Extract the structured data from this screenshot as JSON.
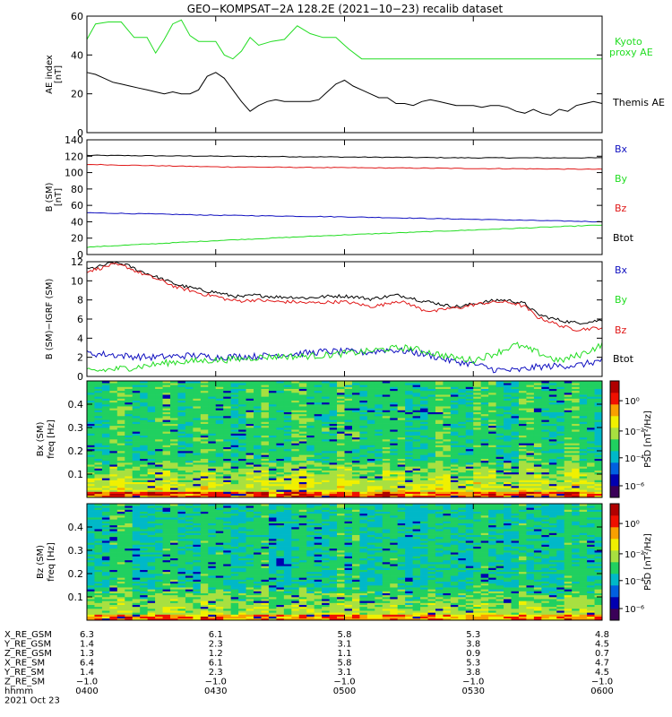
{
  "title": "GEO−KOMPSAT−2A 128.2E (2021−10−23) recalib dataset",
  "colors": {
    "black": "#000000",
    "green": "#22dd22",
    "red": "#e01818",
    "blue": "#1010c0"
  },
  "colorbar_colors": [
    "#3a0058",
    "#0000b0",
    "#0060e0",
    "#00b8c8",
    "#20d060",
    "#a8e040",
    "#f0f000",
    "#f8a000",
    "#f01000",
    "#b00000"
  ],
  "chart_data": [
    {
      "type": "line",
      "ylabel": "AE index",
      "yunit": "[nT]",
      "ylim": [
        0,
        60
      ],
      "yticks": [
        "0",
        "20",
        "40",
        "60"
      ],
      "series": [
        {
          "name": "Kyoto proxy AE",
          "color": "#22dd22",
          "x": [
            0,
            2,
            5,
            8,
            11,
            14,
            16,
            18,
            20,
            22,
            24,
            26,
            28,
            30,
            32,
            34,
            36,
            38,
            40,
            43,
            46,
            49,
            52,
            55,
            58,
            61,
            64,
            67,
            70,
            75,
            80,
            90,
            100,
            110,
            120
          ],
          "values": [
            48,
            56,
            57,
            57,
            49,
            49,
            41,
            48,
            56,
            58,
            50,
            47,
            47,
            47,
            40,
            38,
            42,
            49,
            45,
            47,
            48,
            55,
            51,
            49,
            49,
            43,
            38,
            38,
            38,
            38,
            38,
            38,
            38,
            38,
            38
          ]
        },
        {
          "name": "Themis AE",
          "color": "#000000",
          "x": [
            0,
            2,
            4,
            6,
            8,
            10,
            12,
            14,
            16,
            18,
            20,
            22,
            24,
            26,
            28,
            30,
            32,
            34,
            36,
            38,
            40,
            42,
            44,
            46,
            48,
            50,
            52,
            54,
            56,
            58,
            60,
            62,
            64,
            66,
            68,
            70,
            72,
            74,
            76,
            78,
            80,
            82,
            84,
            86,
            88,
            90,
            92,
            94,
            96,
            98,
            100,
            102,
            104,
            106,
            108,
            110,
            112,
            114,
            116,
            118,
            120
          ],
          "values": [
            31,
            30,
            28,
            26,
            25,
            24,
            23,
            22,
            21,
            20,
            21,
            20,
            20,
            22,
            29,
            31,
            28,
            22,
            16,
            11,
            14,
            16,
            17,
            16,
            16,
            16,
            16,
            17,
            21,
            25,
            27,
            24,
            22,
            20,
            18,
            18,
            15,
            15,
            14,
            16,
            17,
            16,
            15,
            14,
            14,
            14,
            13,
            14,
            14,
            13,
            11,
            10,
            12,
            10,
            9,
            12,
            11,
            14,
            15,
            16,
            15
          ]
        }
      ],
      "legend": [
        "Kyoto",
        "proxy AE",
        "Themis AE"
      ]
    },
    {
      "type": "line",
      "ylabel": "B (SM)",
      "yunit": "[nT]",
      "ylim": [
        0,
        140
      ],
      "yticks": [
        "0",
        "20",
        "40",
        "60",
        "80",
        "100",
        "120",
        "140"
      ],
      "series": [
        {
          "name": "Btot",
          "color": "#000000",
          "x": [
            0,
            30,
            60,
            90,
            120
          ],
          "values": [
            121,
            120,
            119,
            118,
            118
          ]
        },
        {
          "name": "Bz",
          "color": "#e01818",
          "x": [
            0,
            30,
            60,
            90,
            120
          ],
          "values": [
            110,
            107,
            106,
            105,
            104
          ]
        },
        {
          "name": "Bx",
          "color": "#1010c0",
          "x": [
            0,
            30,
            60,
            90,
            120
          ],
          "values": [
            51,
            48,
            46,
            43,
            40
          ]
        },
        {
          "name": "By",
          "color": "#22dd22",
          "x": [
            0,
            30,
            60,
            90,
            120
          ],
          "values": [
            9,
            17,
            24,
            30,
            36
          ]
        }
      ],
      "legend": [
        "Bx",
        "By",
        "Bz",
        "Btot"
      ]
    },
    {
      "type": "line",
      "ylabel": "B (SM)−IGRF (SM)",
      "ylim": [
        0,
        12
      ],
      "yticks": [
        "0",
        "2",
        "4",
        "6",
        "8",
        "10",
        "12"
      ],
      "series": [
        {
          "name": "Btot",
          "color": "#000000",
          "x": [
            0,
            3,
            6,
            9,
            12,
            15,
            18,
            21,
            24,
            27,
            30,
            33,
            36,
            39,
            42,
            45,
            48,
            51,
            54,
            57,
            60,
            63,
            66,
            69,
            72,
            75,
            78,
            81,
            84,
            87,
            90,
            93,
            96,
            99,
            102,
            105,
            108,
            111,
            114,
            117,
            120
          ],
          "values": [
            11.2,
            11.5,
            11.9,
            11.7,
            11.1,
            10.6,
            10.1,
            9.6,
            9.3,
            9.0,
            8.8,
            8.5,
            8.3,
            8.5,
            8.4,
            8.3,
            8.3,
            8.2,
            8.3,
            8.4,
            8.4,
            8.3,
            8.1,
            8.3,
            8.5,
            8.3,
            7.9,
            7.7,
            7.4,
            7.3,
            7.6,
            7.8,
            8.0,
            7.9,
            7.6,
            6.5,
            6.1,
            5.8,
            5.6,
            5.7,
            5.9
          ]
        },
        {
          "name": "Bz",
          "color": "#e01818",
          "x": [
            0,
            3,
            6,
            9,
            12,
            15,
            18,
            21,
            24,
            27,
            30,
            33,
            36,
            39,
            42,
            45,
            48,
            51,
            54,
            57,
            60,
            63,
            66,
            69,
            72,
            75,
            78,
            81,
            84,
            87,
            90,
            93,
            96,
            99,
            102,
            105,
            108,
            111,
            114,
            117,
            120
          ],
          "values": [
            11.0,
            11.3,
            11.7,
            11.5,
            10.9,
            10.4,
            9.9,
            9.3,
            9.0,
            8.6,
            8.4,
            8.0,
            7.9,
            8.0,
            7.9,
            7.8,
            7.8,
            7.7,
            7.7,
            7.8,
            7.8,
            7.6,
            7.3,
            7.5,
            7.9,
            7.6,
            7.0,
            6.8,
            7.1,
            7.2,
            7.5,
            7.7,
            7.8,
            7.7,
            7.3,
            6.2,
            5.7,
            5.2,
            4.9,
            5.0,
            5.1
          ]
        },
        {
          "name": "Bx",
          "color": "#1010c0",
          "x": [
            0,
            5,
            10,
            15,
            20,
            25,
            30,
            35,
            40,
            45,
            50,
            55,
            60,
            65,
            70,
            75,
            80,
            85,
            90,
            95,
            100,
            105,
            110,
            115,
            120
          ],
          "values": [
            2.4,
            2.3,
            2.1,
            2.0,
            2.1,
            2.2,
            2.0,
            2.1,
            2.1,
            2.3,
            2.4,
            2.6,
            2.6,
            2.5,
            2.8,
            2.6,
            2.2,
            1.6,
            1.3,
            0.7,
            0.6,
            1.0,
            1.1,
            1.2,
            1.7
          ]
        },
        {
          "name": "By",
          "color": "#22dd22",
          "x": [
            0,
            5,
            10,
            15,
            20,
            25,
            30,
            35,
            40,
            45,
            50,
            55,
            60,
            65,
            70,
            75,
            80,
            85,
            90,
            95,
            100,
            105,
            110,
            115,
            120
          ],
          "values": [
            0.5,
            0.7,
            0.9,
            1.2,
            1.5,
            1.6,
            1.7,
            1.8,
            2.0,
            2.1,
            2.1,
            2.2,
            2.4,
            2.6,
            2.9,
            3.0,
            2.5,
            2.0,
            1.7,
            2.4,
            3.3,
            2.5,
            1.6,
            2.3,
            3.3
          ]
        }
      ],
      "legend": [
        "Bx",
        "By",
        "Bz",
        "Btot"
      ]
    },
    {
      "type": "heatmap",
      "ylabel": "Bx (SM)",
      "yunit": "freq [Hz]",
      "ylim": [
        0,
        0.5
      ],
      "yticks": [
        "0.1",
        "0.2",
        "0.3",
        "0.4"
      ],
      "colorbar_label": "PSD [nT²/Hz]",
      "colorbar_ticks": [
        "10⁰",
        "10⁻²",
        "10⁻⁴",
        "10⁻⁶"
      ]
    },
    {
      "type": "heatmap",
      "ylabel": "Bz (SM)",
      "yunit": "freq [Hz]",
      "ylim": [
        0,
        0.5
      ],
      "yticks": [
        "0.1",
        "0.2",
        "0.3",
        "0.4"
      ],
      "colorbar_label": "PSD [nT²/Hz]",
      "colorbar_ticks": [
        "10⁰",
        "10⁻²",
        "10⁻⁴",
        "10⁻⁶"
      ]
    }
  ],
  "xaxis": {
    "row_labels": [
      "X_RE_GSM",
      "Y_RE_GSM",
      "Z_RE_GSM",
      "X_RE_SM",
      "Y_RE_SM",
      "Z_RE_SM",
      "hhmm"
    ],
    "date_label": "2021 Oct 23",
    "columns": [
      [
        "6.3",
        "1.4",
        "1.3",
        "6.4",
        "1.4",
        "−1.0",
        "0400"
      ],
      [
        "6.1",
        "2.3",
        "1.2",
        "6.1",
        "2.3",
        "−1.0",
        "0430"
      ],
      [
        "5.8",
        "3.1",
        "1.1",
        "5.8",
        "3.1",
        "−1.0",
        "0500"
      ],
      [
        "5.3",
        "3.8",
        "0.9",
        "5.3",
        "3.8",
        "−1.0",
        "0530"
      ],
      [
        "4.8",
        "4.5",
        "0.7",
        "4.7",
        "4.5",
        "−1.0",
        "0600"
      ]
    ]
  }
}
